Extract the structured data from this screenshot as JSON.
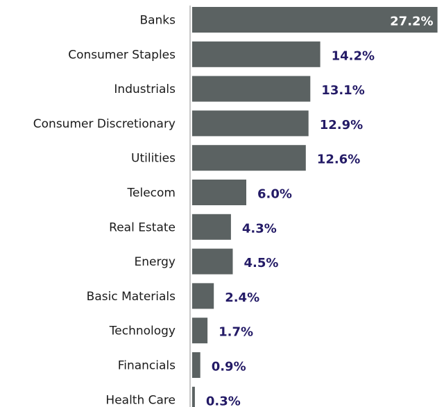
{
  "chart_data": {
    "type": "bar",
    "orientation": "horizontal",
    "categories": [
      "Banks",
      "Consumer Staples",
      "Industrials",
      "Consumer Discretionary",
      "Utilities",
      "Telecom",
      "Real Estate",
      "Energy",
      "Basic Materials",
      "Technology",
      "Financials",
      "Health Care"
    ],
    "values": [
      27.2,
      14.2,
      13.1,
      12.9,
      12.6,
      6.0,
      4.3,
      4.5,
      2.4,
      1.7,
      0.9,
      0.3
    ],
    "value_labels": [
      "27.2%",
      "14.2%",
      "13.1%",
      "12.9%",
      "12.6%",
      "6.0%",
      "4.3%",
      "4.5%",
      "2.4%",
      "1.7%",
      "0.9%",
      "0.3%"
    ],
    "title": "",
    "xlabel": "",
    "ylabel": "",
    "xlim": [
      0,
      28
    ],
    "grid": false,
    "legend": "none",
    "colors": {
      "bar": "#5b6262",
      "value_label": "#231a66",
      "value_label_inside": "#ffffff",
      "axis_line": "#c8c8c8"
    }
  }
}
